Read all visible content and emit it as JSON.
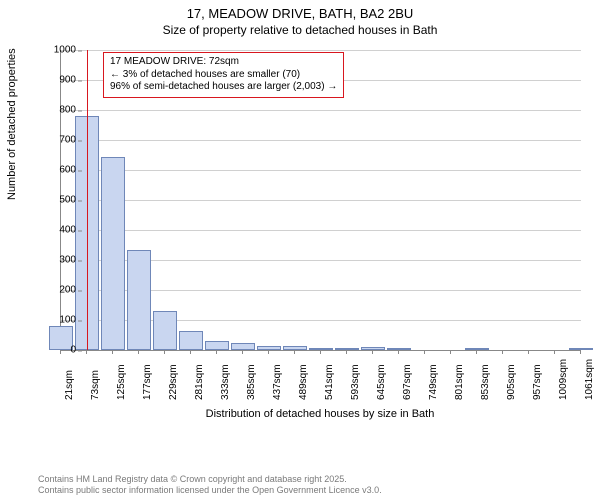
{
  "title": {
    "line1": "17, MEADOW DRIVE, BATH, BA2 2BU",
    "line2": "Size of property relative to detached houses in Bath"
  },
  "chart": {
    "type": "histogram",
    "ylabel": "Number of detached properties",
    "xlabel": "Distribution of detached houses by size in Bath",
    "ylim": [
      0,
      1000
    ],
    "ytick_step": 100,
    "yticks": [
      0,
      100,
      200,
      300,
      400,
      500,
      600,
      700,
      800,
      900,
      1000
    ],
    "xticks": [
      "21sqm",
      "73sqm",
      "125sqm",
      "177sqm",
      "229sqm",
      "281sqm",
      "333sqm",
      "385sqm",
      "437sqm",
      "489sqm",
      "541sqm",
      "593sqm",
      "645sqm",
      "697sqm",
      "749sqm",
      "801sqm",
      "853sqm",
      "905sqm",
      "957sqm",
      "1009sqm",
      "1061sqm"
    ],
    "bar_fill": "#c9d6f0",
    "bar_stroke": "#6f87b8",
    "grid_color": "#d0d0d0",
    "axis_color": "#888888",
    "background_color": "#ffffff",
    "marker_color": "#d8171f",
    "bars": [
      {
        "x": 21,
        "value": 80
      },
      {
        "x": 73,
        "value": 780
      },
      {
        "x": 125,
        "value": 645
      },
      {
        "x": 177,
        "value": 335
      },
      {
        "x": 229,
        "value": 130
      },
      {
        "x": 281,
        "value": 65
      },
      {
        "x": 333,
        "value": 30
      },
      {
        "x": 385,
        "value": 25
      },
      {
        "x": 437,
        "value": 15
      },
      {
        "x": 489,
        "value": 12
      },
      {
        "x": 541,
        "value": 6
      },
      {
        "x": 593,
        "value": 3
      },
      {
        "x": 645,
        "value": 10
      },
      {
        "x": 697,
        "value": 2
      },
      {
        "x": 749,
        "value": 0
      },
      {
        "x": 801,
        "value": 0
      },
      {
        "x": 853,
        "value": 2
      },
      {
        "x": 905,
        "value": 0
      },
      {
        "x": 957,
        "value": 0
      },
      {
        "x": 1009,
        "value": 0
      },
      {
        "x": 1061,
        "value": 2
      }
    ],
    "marker": {
      "x_value": 72,
      "box": {
        "line1": "17 MEADOW DRIVE: 72sqm",
        "line2": "← 3% of detached houses are smaller (70)",
        "line3": "96% of semi-detached houses are larger (2,003) →"
      }
    }
  },
  "footer": {
    "line1": "Contains HM Land Registry data © Crown copyright and database right 2025.",
    "line2": "Contains public sector information licensed under the Open Government Licence v3.0."
  }
}
